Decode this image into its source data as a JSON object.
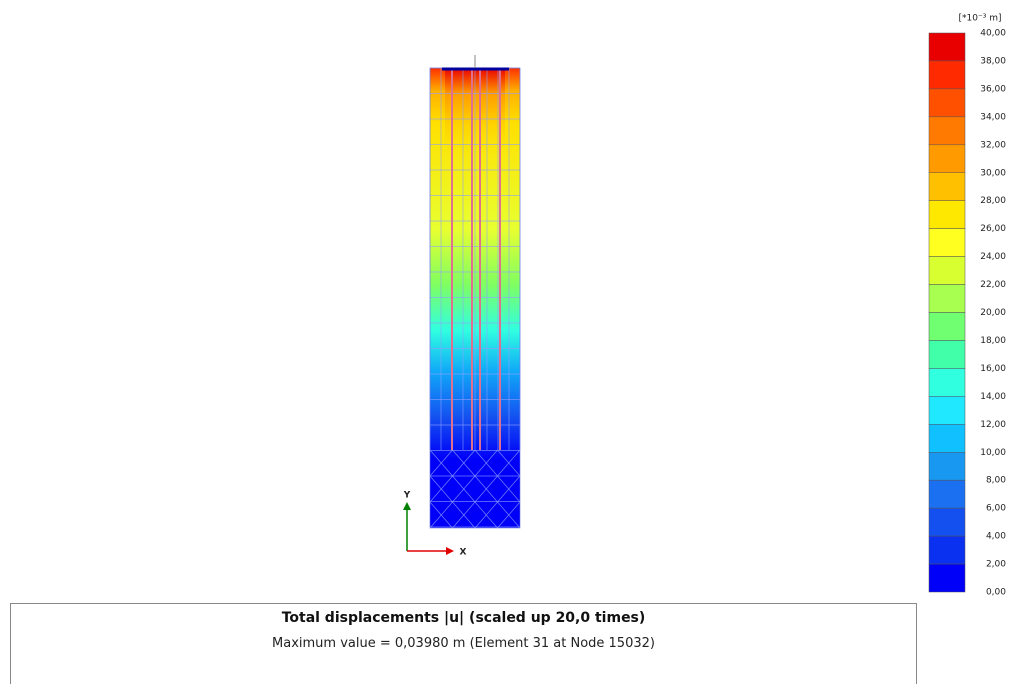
{
  "legend": {
    "unit": "[*10⁻³ m]",
    "labels": [
      "40,00",
      "38,00",
      "36,00",
      "34,00",
      "32,00",
      "30,00",
      "28,00",
      "26,00",
      "24,00",
      "22,00",
      "20,00",
      "18,00",
      "16,00",
      "14,00",
      "12,00",
      "10,00",
      "8,00",
      "6,00",
      "4,00",
      "2,00",
      "0,00"
    ],
    "colors": [
      "#e80000",
      "#ff2a00",
      "#ff5000",
      "#ff7a00",
      "#ff9a00",
      "#ffc000",
      "#ffe800",
      "#ffff20",
      "#d8ff30",
      "#a8ff50",
      "#70ff70",
      "#40ffa8",
      "#30ffe0",
      "#20e8ff",
      "#10c0ff",
      "#1898f0",
      "#1a70f0",
      "#1450f0",
      "#0a30f0",
      "#0000f8"
    ]
  },
  "axes": {
    "x": "X",
    "y": "Y"
  },
  "info": {
    "title": "Total displacements |u| (scaled up 20,0 times)",
    "subtitle": "Maximum value = 0,03980 m (Element 31 at Node 15032)"
  }
}
